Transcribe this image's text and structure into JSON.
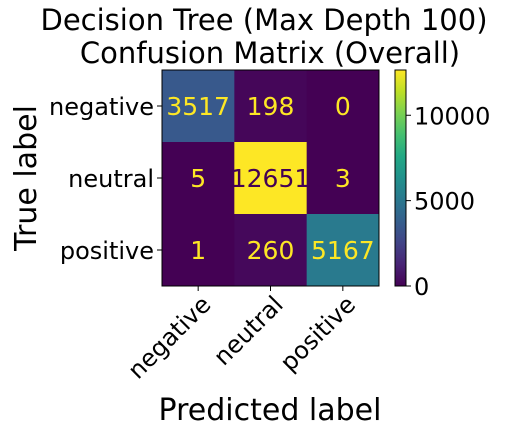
{
  "chart_data": {
    "type": "heatmap",
    "title_lines": [
      "Decision Tree (Max Depth 100)",
      "Confusion Matrix (Overall)"
    ],
    "xlabel": "Predicted label",
    "ylabel": "True label",
    "x_categories": [
      "negative",
      "neutral",
      "positive"
    ],
    "y_categories": [
      "negative",
      "neutral",
      "positive"
    ],
    "values": [
      [
        3517,
        198,
        0
      ],
      [
        5,
        12651,
        3
      ],
      [
        1,
        260,
        5167
      ]
    ],
    "colormap": "viridis",
    "colorbar": {
      "ticks": [
        0,
        5000,
        10000
      ],
      "range": [
        0,
        12651
      ]
    },
    "text_colors": {
      "on_dark": "#fde725",
      "on_light": "#440154"
    }
  }
}
